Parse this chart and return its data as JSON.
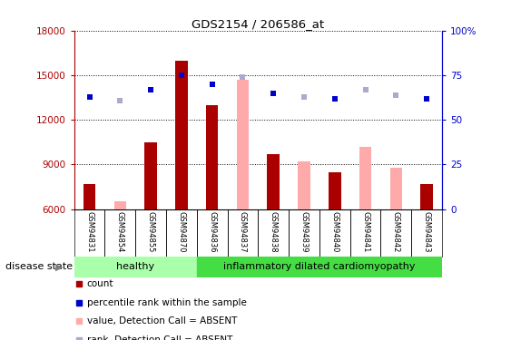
{
  "title": "GDS2154 / 206586_at",
  "samples": [
    "GSM94831",
    "GSM94854",
    "GSM94855",
    "GSM94870",
    "GSM94836",
    "GSM94837",
    "GSM94838",
    "GSM94839",
    "GSM94840",
    "GSM94841",
    "GSM94842",
    "GSM94843"
  ],
  "count_values": [
    7700,
    null,
    10500,
    16000,
    13000,
    null,
    9700,
    null,
    8500,
    null,
    null,
    7700
  ],
  "absent_values": [
    null,
    6500,
    null,
    null,
    null,
    14700,
    null,
    9200,
    null,
    10200,
    8800,
    null
  ],
  "rank_present": [
    63,
    null,
    67,
    75,
    70,
    null,
    65,
    null,
    62,
    null,
    null,
    62
  ],
  "rank_absent": [
    null,
    61,
    null,
    null,
    null,
    74,
    null,
    63,
    null,
    67,
    64,
    null
  ],
  "ylim_left": [
    6000,
    18000
  ],
  "ylim_right": [
    0,
    100
  ],
  "yticks_left": [
    6000,
    9000,
    12000,
    15000,
    18000
  ],
  "yticks_right": [
    0,
    25,
    50,
    75,
    100
  ],
  "color_count": "#aa0000",
  "color_absent_bar": "#ffaaaa",
  "color_rank_present": "#0000cc",
  "color_rank_absent": "#aaaacc",
  "healthy_color": "#aaffaa",
  "inflam_color": "#44dd44",
  "group_labels": [
    "healthy",
    "inflammatory dilated cardiomyopathy"
  ],
  "healthy_span": [
    0,
    3
  ],
  "inflam_span": [
    4,
    11
  ],
  "legend_items": [
    {
      "label": "count",
      "color": "#aa0000"
    },
    {
      "label": "percentile rank within the sample",
      "color": "#0000cc"
    },
    {
      "label": "value, Detection Call = ABSENT",
      "color": "#ffaaaa"
    },
    {
      "label": "rank, Detection Call = ABSENT",
      "color": "#aaaacc"
    }
  ],
  "disease_state_label": "disease state",
  "background_color": "#ffffff",
  "tick_area_bg": "#cccccc"
}
